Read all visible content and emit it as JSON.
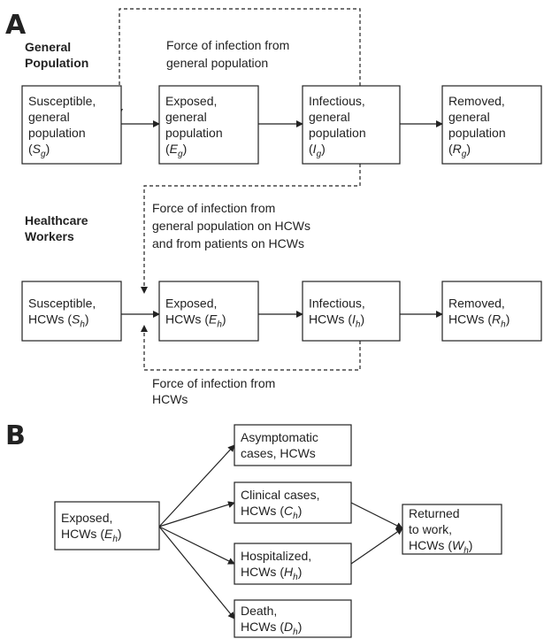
{
  "panel_a": {
    "letter": "A",
    "groups": [
      {
        "lines": [
          "General",
          "Population"
        ]
      },
      {
        "lines": [
          "Healthcare",
          "Workers"
        ]
      }
    ],
    "nodes": [
      {
        "lines": [
          "Susceptible,",
          "general",
          "population"
        ],
        "math": {
          "pre": "(",
          "sym": "S",
          "sub": "g",
          "post": ")"
        }
      },
      {
        "lines": [
          "Exposed,",
          "general",
          "population"
        ],
        "math": {
          "pre": "(",
          "sym": "E",
          "sub": "g",
          "post": ")"
        }
      },
      {
        "lines": [
          "Infectious,",
          "general",
          "population"
        ],
        "math": {
          "pre": "(",
          "sym": "I",
          "sub": "g",
          "post": ")"
        }
      },
      {
        "lines": [
          "Removed,",
          "general",
          "population"
        ],
        "math": {
          "pre": "(",
          "sym": "R",
          "sub": "g",
          "post": ")"
        }
      },
      {
        "lines": [
          "Susceptible,"
        ],
        "math": {
          "pre": "HCWs (",
          "sym": "S",
          "sub": "h",
          "post": ")"
        }
      },
      {
        "lines": [
          "Exposed,"
        ],
        "math": {
          "pre": "HCWs (",
          "sym": "E",
          "sub": "h",
          "post": ")"
        }
      },
      {
        "lines": [
          "Infectious,"
        ],
        "math": {
          "pre": "HCWs (",
          "sym": "I",
          "sub": "h",
          "post": ")"
        }
      },
      {
        "lines": [
          "Removed,"
        ],
        "math": {
          "pre": "HCWs (",
          "sym": "R",
          "sub": "h",
          "post": ")"
        }
      }
    ],
    "annotations": [
      {
        "lines": [
          "Force of infection from",
          "general population"
        ]
      },
      {
        "lines": [
          "Force of infection from",
          "general population on HCWs",
          "and from patients on HCWs"
        ]
      },
      {
        "lines": [
          "Force of infection from",
          "HCWs"
        ]
      }
    ]
  },
  "panel_b": {
    "letter": "B",
    "nodes": [
      {
        "lines": [
          "Exposed,"
        ],
        "math": {
          "pre": "HCWs (",
          "sym": "E",
          "sub": "h",
          "post": ")"
        }
      },
      {
        "lines": [
          "Asymptomatic",
          "cases, HCWs"
        ]
      },
      {
        "lines": [
          "Clinical cases,"
        ],
        "math": {
          "pre": "HCWs (",
          "sym": "C",
          "sub": "h",
          "post": ")"
        }
      },
      {
        "lines": [
          "Hospitalized,"
        ],
        "math": {
          "pre": "HCWs (",
          "sym": "H",
          "sub": "h",
          "post": ")"
        }
      },
      {
        "lines": [
          "Death,"
        ],
        "math": {
          "pre": "HCWs (",
          "sym": "D",
          "sub": "h",
          "post": ")"
        }
      },
      {
        "lines": [
          "Returned",
          "to work,"
        ],
        "math": {
          "pre": "HCWs (",
          "sym": "W",
          "sub": "h",
          "post": ")"
        }
      }
    ]
  }
}
